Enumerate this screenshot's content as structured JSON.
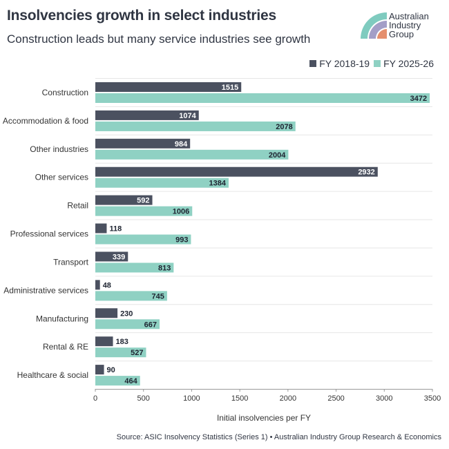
{
  "header": {
    "title": "Insolvencies growth in select industries",
    "subtitle": "Construction leads but many service industries see growth"
  },
  "logo": {
    "line1": "Australian",
    "line2": "Industry",
    "line3": "Group",
    "colors": [
      "#7fcbbf",
      "#a39ec7",
      "#e58f6e"
    ]
  },
  "footer": {
    "source": "Source: ASIC Insolvency Statistics (Series 1) • Australian Industry Group Research & Economics"
  },
  "chart_data": {
    "type": "bar",
    "orientation": "horizontal",
    "categories": [
      "Construction",
      "Accommodation & food",
      "Other industries",
      "Other services",
      "Retail",
      "Professional services",
      "Transport",
      "Administrative services",
      "Manufacturing",
      "Rental & RE",
      "Healthcare & social"
    ],
    "series": [
      {
        "name": "FY 2018-19",
        "color": "#4b5160",
        "values": [
          1515,
          1074,
          984,
          2932,
          592,
          118,
          339,
          48,
          230,
          183,
          90
        ]
      },
      {
        "name": "FY 2025-26",
        "color": "#8fd1c3",
        "values": [
          3472,
          2078,
          2004,
          1384,
          1006,
          993,
          813,
          745,
          667,
          527,
          464
        ]
      }
    ],
    "xlabel": "Initial insolvencies per FY",
    "ylabel": "",
    "xlim": [
      0,
      3500
    ],
    "xticks": [
      0,
      500,
      1000,
      1500,
      2000,
      2500,
      3000,
      3500
    ],
    "legend_position": "top-right",
    "grid": "horizontal"
  }
}
